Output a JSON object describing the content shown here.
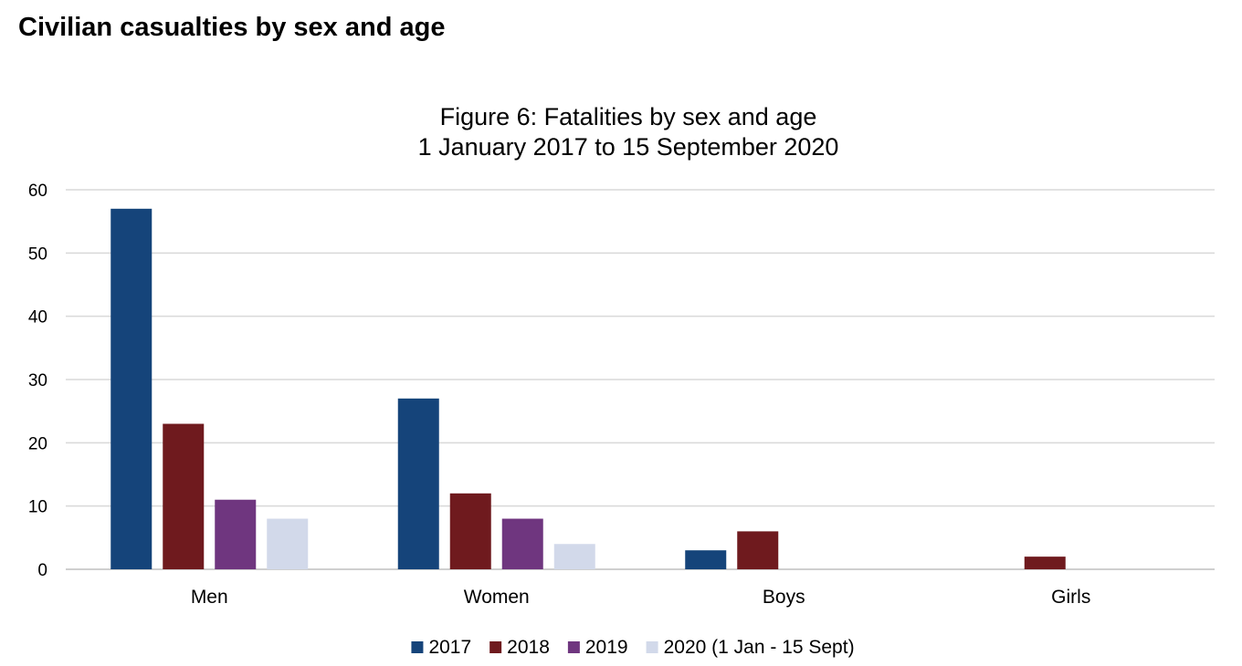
{
  "page": {
    "heading": "Civilian casualties by sex and age"
  },
  "chart_data": {
    "type": "bar",
    "title": "Figure 6: Fatalities by sex and age",
    "subtitle": "1  January 2017 to 15 September 2020",
    "categories": [
      "Men",
      "Women",
      "Boys",
      "Girls"
    ],
    "series": [
      {
        "name": "2017",
        "values": [
          57,
          27,
          3,
          0
        ],
        "color": "#15447a"
      },
      {
        "name": "2018",
        "values": [
          23,
          12,
          6,
          2
        ],
        "color": "#6f1a1e"
      },
      {
        "name": "2019",
        "values": [
          11,
          8,
          0,
          0
        ],
        "color": "#6f367f"
      },
      {
        "name": "2020 (1 Jan - 15 Sept)",
        "values": [
          8,
          4,
          0,
          0
        ],
        "color": "#d2d9ea"
      }
    ],
    "ylim": [
      0,
      60
    ],
    "yticks": [
      "0",
      "10",
      "20",
      "30",
      "40",
      "50",
      "60"
    ],
    "grid": true,
    "legend_position": "bottom"
  }
}
